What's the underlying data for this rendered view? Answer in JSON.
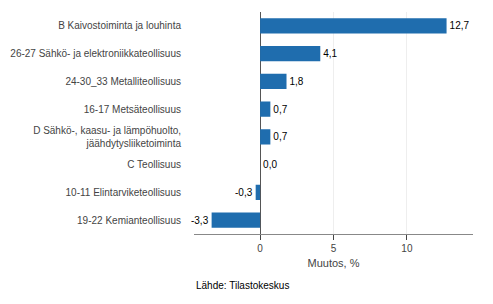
{
  "chart_data": {
    "type": "bar",
    "orientation": "horizontal",
    "categories": [
      "19-22 Kemianteollisuus",
      "10-11 Elintarviketeollisuus",
      "C Teollisuus",
      "D Sähkö-, kaasu- ja lämpöhuolto,\njäähdytysliiketoiminta",
      "16-17 Metsäteollisuus",
      "24-30_33 Metalliteollisuus",
      "26-27 Sähkö- ja elektroniikkateollisuus",
      "B Kaivostoiminta ja louhinta"
    ],
    "values": [
      -3.3,
      -0.3,
      0.0,
      0.7,
      0.7,
      1.8,
      4.1,
      12.7
    ],
    "value_labels": [
      "-3,3",
      "-0,3",
      "0,0",
      "0,7",
      "0,7",
      "1,8",
      "4,1",
      "12,7"
    ],
    "data_labels": true,
    "color": "#1F6DAE",
    "xlabel": "Muutos, %",
    "xlim": [
      -4.5,
      14.5
    ],
    "xticks": [
      0,
      5,
      10
    ],
    "grid": true,
    "annotations": [
      "Lähde: Tilastokeskus"
    ]
  }
}
